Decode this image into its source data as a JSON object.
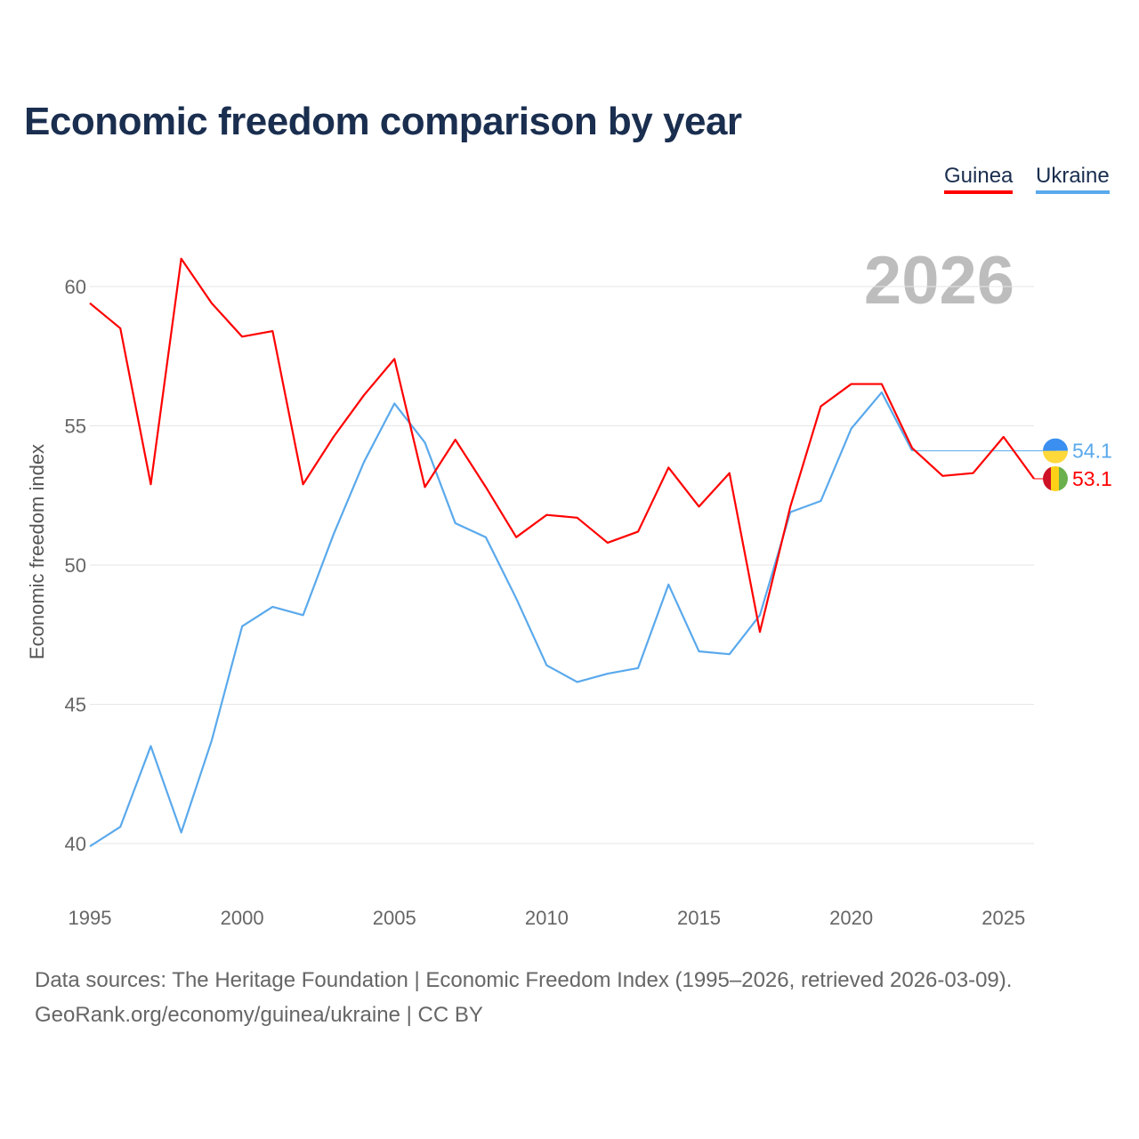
{
  "chart_data": {
    "type": "line",
    "title": "Economic freedom comparison by year",
    "ylabel": "Economic freedom index",
    "xlabel": "",
    "year_label": "2026",
    "ylim": [
      40,
      60
    ],
    "xlim": [
      1995,
      2026
    ],
    "yticks": [
      "40",
      "45",
      "50",
      "55",
      "60"
    ],
    "xticks": [
      "1995",
      "2000",
      "2005",
      "2010",
      "2015",
      "2020",
      "2025"
    ],
    "grid": true,
    "legend_position": "top-right",
    "x": [
      1995,
      1996,
      1997,
      1998,
      1999,
      2000,
      2001,
      2002,
      2003,
      2004,
      2005,
      2006,
      2007,
      2008,
      2009,
      2010,
      2011,
      2012,
      2013,
      2014,
      2015,
      2016,
      2017,
      2018,
      2019,
      2020,
      2021,
      2022,
      2023,
      2024,
      2025,
      2026
    ],
    "series": [
      {
        "name": "Guinea",
        "color": "#ff0000",
        "end_label": "53.1",
        "values": [
          59.4,
          58.5,
          52.9,
          61.0,
          59.4,
          58.2,
          58.4,
          52.9,
          54.6,
          56.1,
          57.4,
          52.8,
          54.5,
          52.8,
          51.0,
          51.8,
          51.7,
          50.8,
          51.2,
          53.5,
          52.1,
          53.3,
          47.6,
          52.1,
          55.7,
          56.5,
          56.5,
          54.2,
          53.2,
          53.3,
          54.6,
          53.1
        ]
      },
      {
        "name": "Ukraine",
        "color": "#5aa9ec",
        "end_label": "54.1",
        "values": [
          39.9,
          40.6,
          43.5,
          40.4,
          43.7,
          47.8,
          48.5,
          48.2,
          51.1,
          53.7,
          55.8,
          54.4,
          51.5,
          51.0,
          48.8,
          46.4,
          45.8,
          46.1,
          46.3,
          49.3,
          46.9,
          46.8,
          48.2,
          51.9,
          52.3,
          54.9,
          56.2,
          54.1,
          null,
          null,
          null,
          null
        ]
      }
    ]
  },
  "footer": {
    "line1": "Data sources: The Heritage Foundation | Economic Freedom Index (1995–2026, retrieved 2026-03-09).",
    "line2": "GeoRank.org/economy/guinea/ukraine | CC BY"
  }
}
